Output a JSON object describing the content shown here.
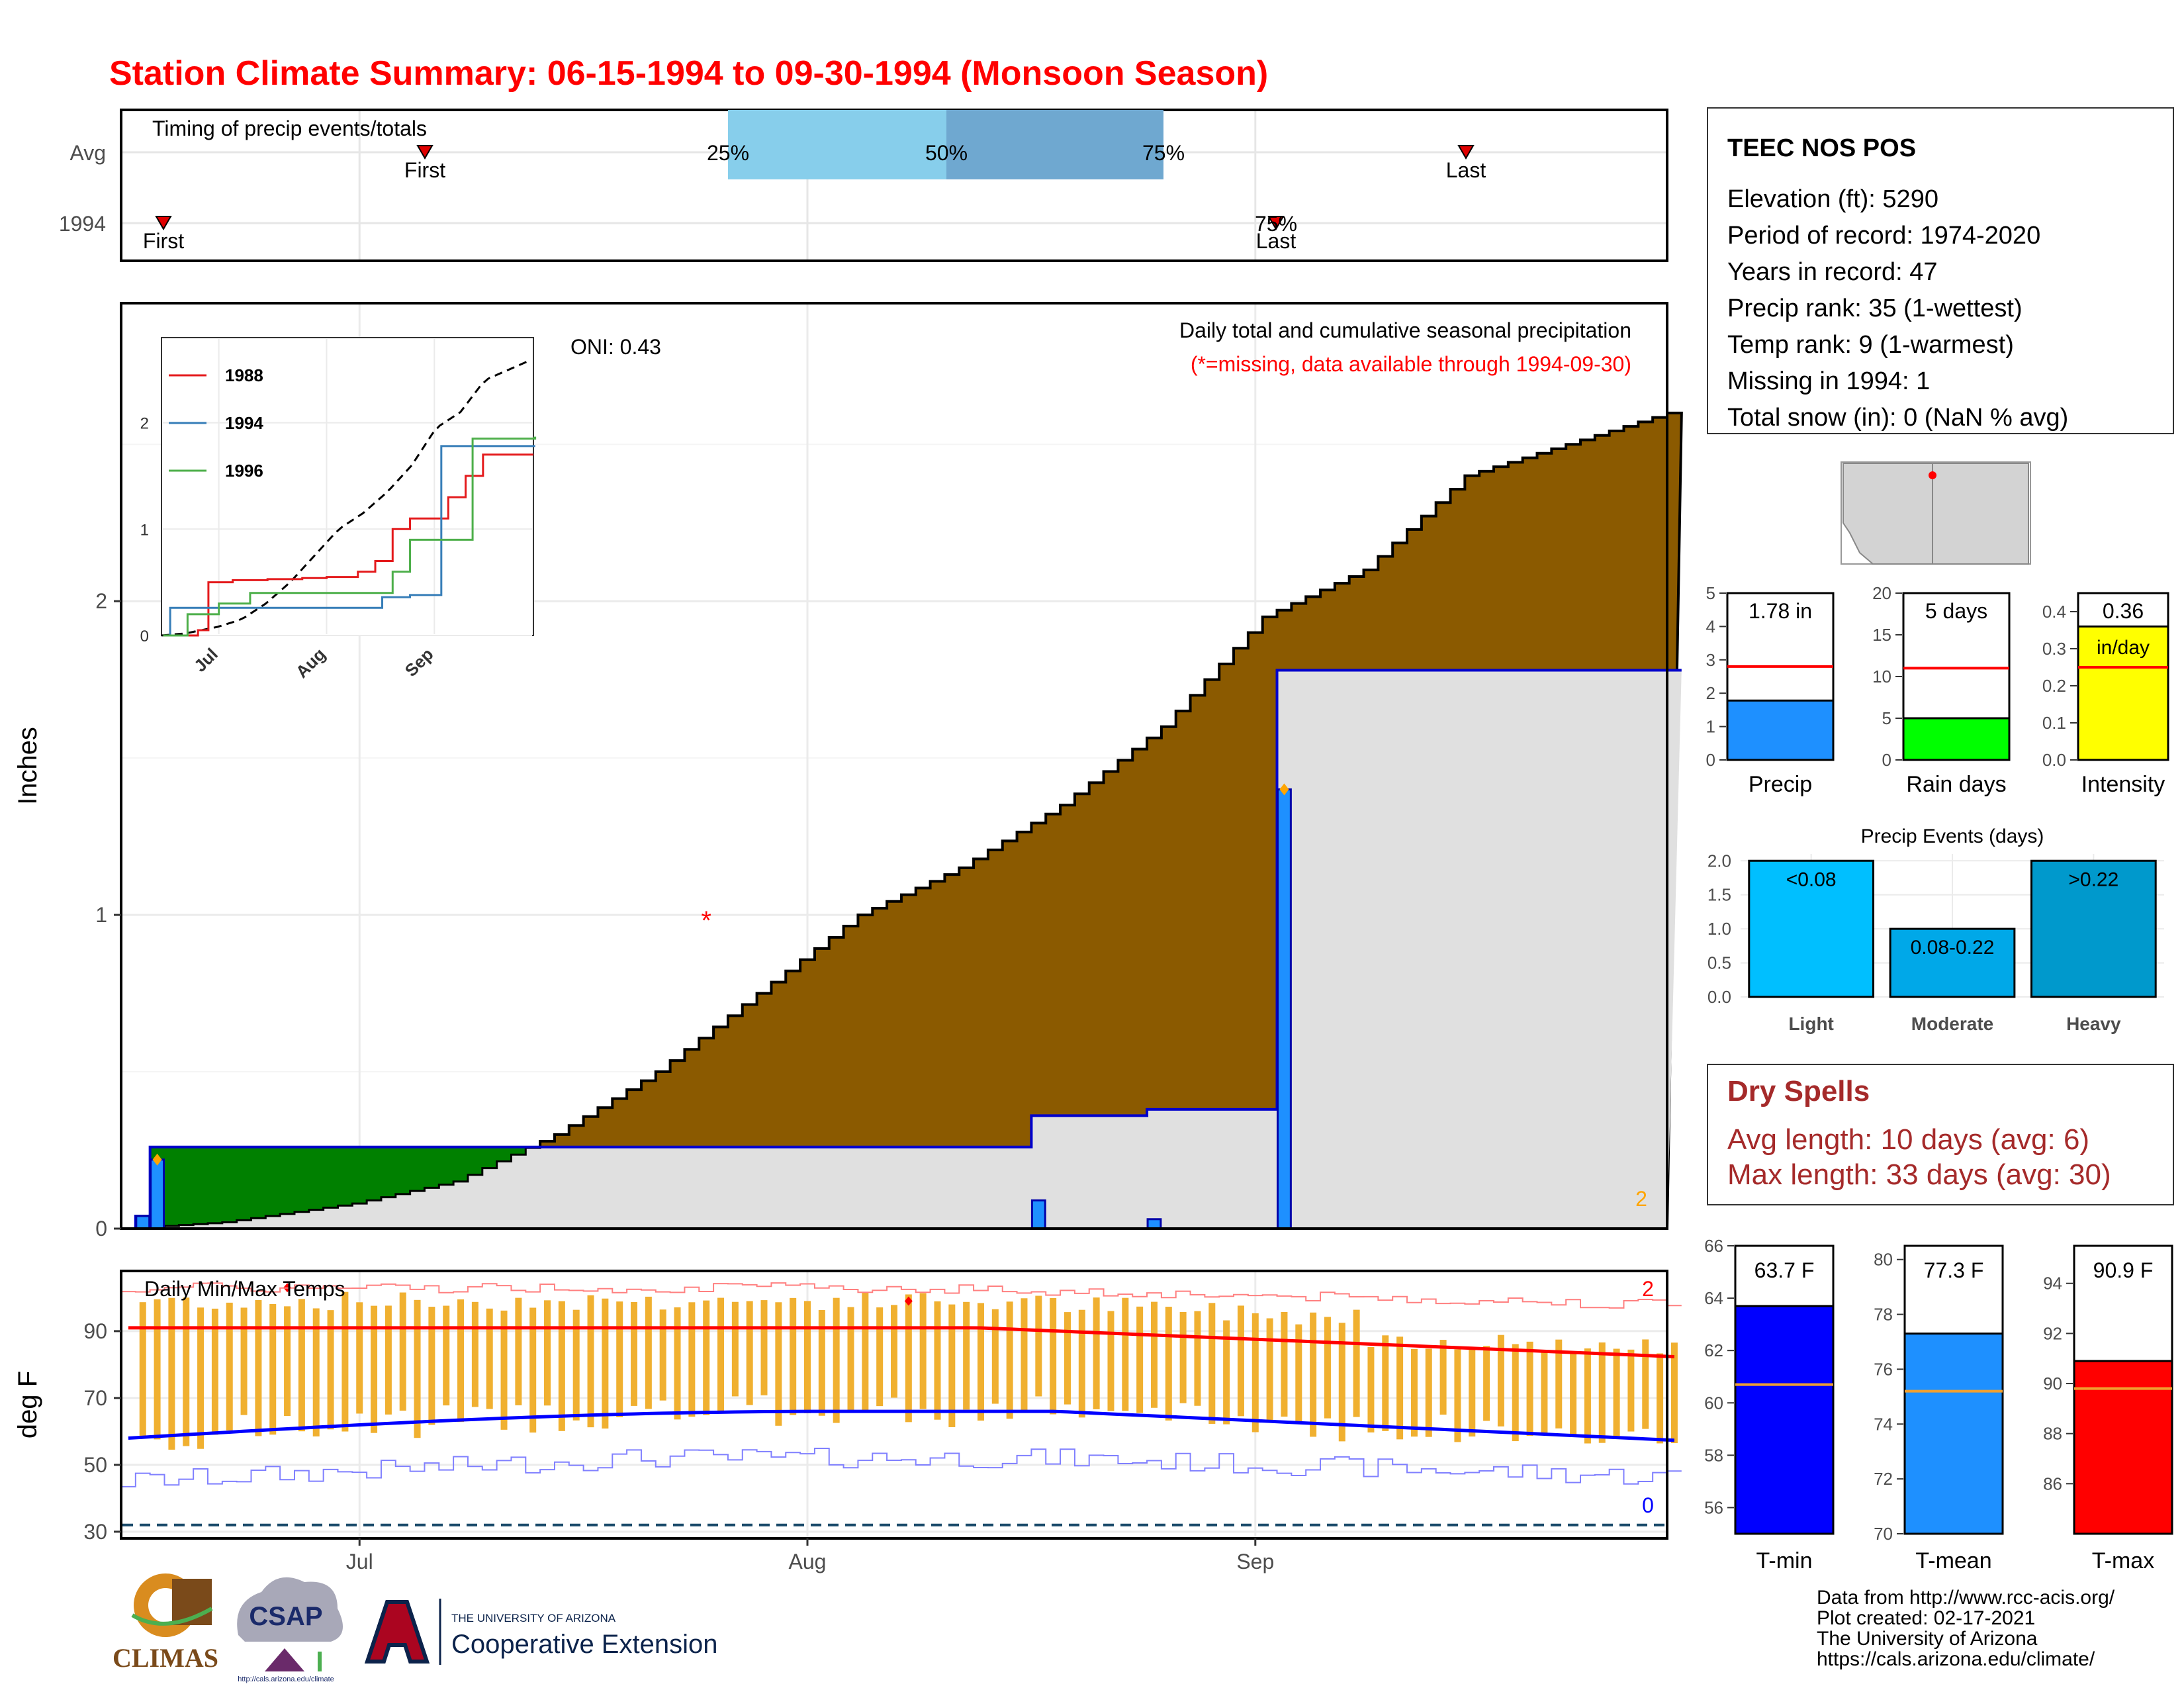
{
  "title": "Station Climate Summary: 06-15-1994 to 09-30-1994 (Monsoon Season)",
  "colors": {
    "title": "#ff0000",
    "cumNormal": "#8b5a00",
    "cumYear": "#008000",
    "precipBar": "#1e90ff",
    "dry": "#a52a2a",
    "tmin": "#0000ff",
    "tmean": "#1e90ff",
    "tmax": "#ff0000",
    "precip": "#1e90ff",
    "raindays": "#00ff00",
    "intensity": "#ffff00",
    "light": "#00bfff",
    "moderate": "#00a8e8",
    "heavy": "#0099cc"
  },
  "timing": {
    "title": "Timing of precip events/totals",
    "rows": [
      "Avg",
      "1994"
    ],
    "avg": {
      "first_label": "First",
      "last_label": "Last",
      "first_date": "2025-07-01",
      "last_date": "2025-09-18",
      "q25_label": "25%",
      "q50_label": "50%",
      "q75_label": "75%",
      "q25_date": "2025-07-27",
      "q50_date": "2025-08-03",
      "q75_date": "2025-08-12"
    },
    "year": {
      "first_label": "First",
      "last_label": "Last",
      "first_date": "2025-06-16",
      "last_date": "2025-09-03",
      "pct_label": "75%"
    }
  },
  "station": {
    "name": "TEEC NOS POS",
    "elevation": "Elevation (ft): 5290",
    "period": "Period of record: 1974-2020",
    "years": "Years in record: 47",
    "precip_rank": "Precip rank: 35 (1-wettest)",
    "temp_rank": "Temp rank: 9 (1-warmest)",
    "missing": "Missing in 1994: 1",
    "snow": "Total snow (in): 0 (NaN % avg)"
  },
  "precip_panel": {
    "ylabel": "Inches",
    "oni": "ONI: 0.43",
    "label1": "Daily total and cumulative seasonal precipitation",
    "label2": "(*=missing, data available through 1994-09-30)",
    "missing_marker": "*",
    "count_label": "2",
    "yticks": [
      "0",
      "1",
      "2"
    ],
    "xticks": [
      "Jul",
      "Aug",
      "Sep"
    ]
  },
  "chart_data": {
    "type": "area",
    "x_range": [
      "1994-06-15",
      "1994-09-30"
    ],
    "ylim": [
      0,
      2.95
    ],
    "normal_cumulative": {
      "x": [
        "06-15",
        "06-22",
        "07-01",
        "07-08",
        "07-15",
        "07-22",
        "07-29",
        "08-05",
        "08-12",
        "08-19",
        "08-26",
        "09-02",
        "09-09",
        "09-16",
        "09-23",
        "09-30"
      ],
      "y": [
        0.0,
        0.02,
        0.08,
        0.15,
        0.3,
        0.5,
        0.75,
        1.0,
        1.15,
        1.35,
        1.6,
        1.95,
        2.1,
        2.4,
        2.5,
        2.6
      ]
    },
    "year_cumulative": {
      "x": [
        "06-15",
        "06-16",
        "06-17",
        "07-25",
        "08-17",
        "08-25",
        "09-02",
        "09-03",
        "09-30"
      ],
      "y": [
        0.0,
        0.04,
        0.26,
        0.26,
        0.36,
        0.38,
        0.38,
        1.78,
        1.78
      ]
    },
    "daily_precip": {
      "x": [
        "06-16",
        "06-17",
        "08-17",
        "08-25",
        "09-03"
      ],
      "y": [
        0.04,
        0.22,
        0.09,
        0.03,
        1.4
      ]
    },
    "missing": {
      "x": [
        "07-25"
      ],
      "y": [
        1.0
      ]
    },
    "inset": {
      "series": [
        {
          "name": "1988",
          "color": "#e41a1c",
          "x": [
            "06-15",
            "06-25",
            "06-28",
            "07-05",
            "07-15",
            "07-25",
            "08-01",
            "08-10",
            "08-15",
            "08-20",
            "08-25",
            "09-05",
            "09-10",
            "09-15"
          ],
          "y": [
            0,
            0.05,
            0.5,
            0.52,
            0.53,
            0.54,
            0.55,
            0.6,
            0.7,
            1,
            1.1,
            1.3,
            1.5,
            1.7
          ]
        },
        {
          "name": "1994",
          "color": "#377eb8",
          "x": [
            "06-15",
            "06-17",
            "07-25",
            "08-17",
            "08-25",
            "09-03",
            "09-30"
          ],
          "y": [
            0,
            0.26,
            0.26,
            0.36,
            0.38,
            1.78,
            1.78
          ]
        },
        {
          "name": "1996",
          "color": "#4daf4a",
          "x": [
            "06-15",
            "06-22",
            "07-01",
            "07-10",
            "08-10",
            "08-20",
            "08-25",
            "09-10",
            "09-12",
            "09-30"
          ],
          "y": [
            0,
            0.2,
            0.3,
            0.4,
            0.4,
            0.6,
            0.9,
            0.9,
            1.85,
            1.86
          ]
        }
      ],
      "yticks": [
        "0",
        "1",
        "2"
      ],
      "xticks": [
        "Jul",
        "Aug",
        "Sep"
      ]
    },
    "temperature": {
      "ylabel": "deg F",
      "title": "Daily Min/Max Temps",
      "yticks": [
        "30",
        "50",
        "70",
        "90"
      ],
      "ylim": [
        28,
        108
      ],
      "label_max": "2",
      "label_min": "0"
    }
  },
  "bars": {
    "precip": {
      "value": 1.78,
      "label": "1.78 in",
      "avg": 2.8,
      "ylim": [
        0,
        5
      ],
      "yticks": [
        "0",
        "1",
        "2",
        "3",
        "4",
        "5"
      ],
      "xlabel": "Precip"
    },
    "raindays": {
      "value": 5,
      "label": "5 days",
      "avg": 11,
      "ylim": [
        0,
        20
      ],
      "yticks": [
        "0",
        "5",
        "10",
        "15",
        "20"
      ],
      "xlabel": "Rain days"
    },
    "intensity": {
      "value": 0.36,
      "label": "0.36",
      "unit": "in/day",
      "avg": 0.25,
      "ylim": [
        0,
        0.45
      ],
      "yticks": [
        "0.0",
        "0.1",
        "0.2",
        "0.3",
        "0.4"
      ],
      "xlabel": "Intensity"
    }
  },
  "events": {
    "title": "Precip Events (days)",
    "yticks": [
      "0.0",
      "0.5",
      "1.0",
      "1.5",
      "2.0"
    ],
    "cats": [
      {
        "name": "Light",
        "range": "<0.08",
        "value": 2
      },
      {
        "name": "Moderate",
        "range": "0.08-0.22",
        "value": 1
      },
      {
        "name": "Heavy",
        "range": ">0.22",
        "value": 2
      }
    ]
  },
  "dry": {
    "title": "Dry Spells",
    "avg": "Avg length: 10 days (avg: 6)",
    "max": "Max length: 33 days (avg: 30)"
  },
  "temps": {
    "tmin": {
      "label": "63.7 F",
      "value": 63.7,
      "avg": 60.7,
      "ylim": [
        55,
        66
      ],
      "yticks": [
        "56",
        "58",
        "60",
        "62",
        "64",
        "66"
      ],
      "xlabel": "T-min"
    },
    "tmean": {
      "label": "77.3 F",
      "value": 77.3,
      "avg": 75.2,
      "ylim": [
        70,
        80.5
      ],
      "yticks": [
        "70",
        "72",
        "74",
        "76",
        "78",
        "80"
      ],
      "xlabel": "T-mean"
    },
    "tmax": {
      "label": "90.9 F",
      "value": 90.9,
      "avg": 89.8,
      "ylim": [
        84,
        95.5
      ],
      "yticks": [
        "86",
        "88",
        "90",
        "92",
        "94"
      ],
      "xlabel": "T-max"
    }
  },
  "footer": {
    "l1": "Data from http://www.rcc-acis.org/",
    "l2": "Plot created: 02-17-2021",
    "l3": "The University of Arizona",
    "l4": "https://cals.arizona.edu/climate/",
    "climas": "CLIMAS",
    "csap": "CSAP",
    "csap_url": "http://cals.arizona.edu/climate",
    "ua_small": "THE UNIVERSITY OF ARIZONA",
    "ua_big": "Cooperative Extension"
  }
}
